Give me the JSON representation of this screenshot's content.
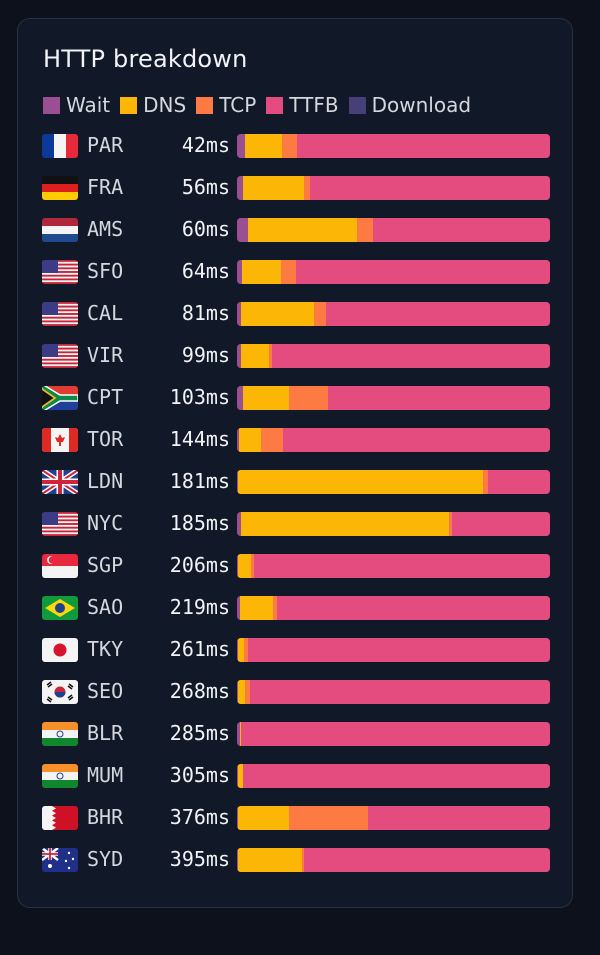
{
  "chart_data": {
    "type": "bar",
    "orientation": "horizontal",
    "stacked": true,
    "normalized": true,
    "title": "HTTP breakdown",
    "legend_position": "top-left",
    "series_names": [
      "Wait",
      "DNS",
      "TCP",
      "TTFB",
      "Download"
    ],
    "colors": {
      "Wait": "#9a4f93",
      "DNS": "#fbb606",
      "TCP": "#fd7a42",
      "TTFB": "#e44c80",
      "Download": "#463f78"
    },
    "rows": [
      {
        "code": "PAR",
        "flag": "fr",
        "total": "42ms",
        "pct": [
          2.6,
          11.8,
          4.7,
          80.9,
          0
        ]
      },
      {
        "code": "FRA",
        "flag": "de",
        "total": "56ms",
        "pct": [
          1.9,
          19.6,
          1.8,
          76.7,
          0
        ]
      },
      {
        "code": "AMS",
        "flag": "nl",
        "total": "60ms",
        "pct": [
          3.4,
          34.9,
          5.1,
          56.6,
          0
        ]
      },
      {
        "code": "SFO",
        "flag": "us",
        "total": "64ms",
        "pct": [
          1.6,
          12.4,
          4.8,
          81.2,
          0
        ]
      },
      {
        "code": "CAL",
        "flag": "us",
        "total": "81ms",
        "pct": [
          1.4,
          23.1,
          4.0,
          71.5,
          0
        ]
      },
      {
        "code": "VIR",
        "flag": "us",
        "total": "99ms",
        "pct": [
          1.2,
          8.9,
          1.1,
          88.8,
          0
        ]
      },
      {
        "code": "CPT",
        "flag": "za",
        "total": "103ms",
        "pct": [
          1.9,
          14.7,
          12.4,
          71.0,
          0
        ]
      },
      {
        "code": "TOR",
        "flag": "ca",
        "total": "144ms",
        "pct": [
          0.7,
          6.9,
          7.0,
          85.4,
          0
        ]
      },
      {
        "code": "LDN",
        "flag": "gb",
        "total": "181ms",
        "pct": [
          0.4,
          78.1,
          1.6,
          19.9,
          0
        ]
      },
      {
        "code": "NYC",
        "flag": "us",
        "total": "185ms",
        "pct": [
          1.2,
          66.4,
          1.2,
          31.2,
          0
        ]
      },
      {
        "code": "SGP",
        "flag": "sg",
        "total": "206ms",
        "pct": [
          0.2,
          4.3,
          1.0,
          94.5,
          0
        ]
      },
      {
        "code": "SAO",
        "flag": "br",
        "total": "219ms",
        "pct": [
          0.9,
          10.6,
          1.4,
          87.1,
          0
        ]
      },
      {
        "code": "TKY",
        "flag": "jp",
        "total": "261ms",
        "pct": [
          0.2,
          2.1,
          1.2,
          96.5,
          0
        ]
      },
      {
        "code": "SEO",
        "flag": "kr",
        "total": "268ms",
        "pct": [
          0.2,
          2.3,
          1.6,
          95.9,
          0
        ]
      },
      {
        "code": "BLR",
        "flag": "in",
        "total": "285ms",
        "pct": [
          1.1,
          0.2,
          0,
          98.7,
          0
        ]
      },
      {
        "code": "MUM",
        "flag": "in",
        "total": "305ms",
        "pct": [
          0.2,
          1.7,
          0,
          98.1,
          0
        ]
      },
      {
        "code": "BHR",
        "flag": "bh",
        "total": "376ms",
        "pct": [
          0.2,
          16.4,
          25.3,
          58.1,
          0
        ]
      },
      {
        "code": "SYD",
        "flag": "au",
        "total": "395ms",
        "pct": [
          0.2,
          20.5,
          0.6,
          78.7,
          0
        ]
      }
    ]
  }
}
